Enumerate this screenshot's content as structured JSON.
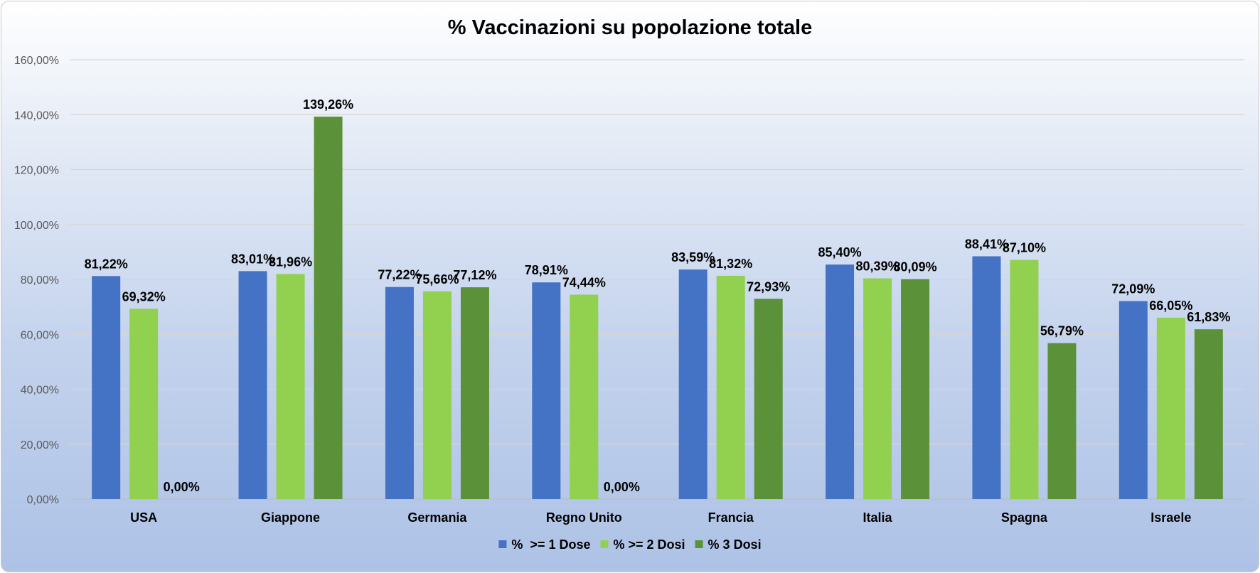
{
  "chart_data": {
    "type": "bar",
    "title": "% Vaccinazioni su popolazione totale",
    "categories": [
      "USA",
      "Giappone",
      "Germania",
      "Regno Unito",
      "Francia",
      "Italia",
      "Spagna",
      "Israele"
    ],
    "series": [
      {
        "name": "%  >= 1 Dose",
        "color": "#4472C4",
        "values": [
          81.22,
          83.01,
          77.22,
          78.91,
          83.59,
          85.4,
          88.41,
          72.09
        ],
        "labels": [
          "81,22%",
          "83,01%",
          "77,22%",
          "78,91%",
          "83,59%",
          "85,40%",
          "88,41%",
          "72,09%"
        ]
      },
      {
        "name": "% >= 2 Dosi",
        "color": "#92D050",
        "values": [
          69.32,
          81.96,
          75.66,
          74.44,
          81.32,
          80.39,
          87.1,
          66.05
        ],
        "labels": [
          "69,32%",
          "81,96%",
          "75,66%",
          "74,44%",
          "81,32%",
          "80,39%",
          "87,10%",
          "66,05%"
        ]
      },
      {
        "name": "% 3 Dosi",
        "color": "#5B9138",
        "values": [
          0.0,
          139.26,
          77.12,
          0.0,
          72.93,
          80.09,
          56.79,
          61.83
        ],
        "labels": [
          "0,00%",
          "139,26%",
          "77,12%",
          "0,00%",
          "72,93%",
          "80,09%",
          "56,79%",
          "61,83%"
        ]
      }
    ],
    "ylim": [
      0,
      160
    ],
    "yticks": [
      0,
      20,
      40,
      60,
      80,
      100,
      120,
      140,
      160
    ],
    "ytick_labels": [
      "0,00%",
      "20,00%",
      "40,00%",
      "60,00%",
      "80,00%",
      "100,00%",
      "120,00%",
      "140,00%",
      "160,00%"
    ],
    "xlabel": "",
    "ylabel": "",
    "grid": true,
    "legend": "bottom"
  }
}
